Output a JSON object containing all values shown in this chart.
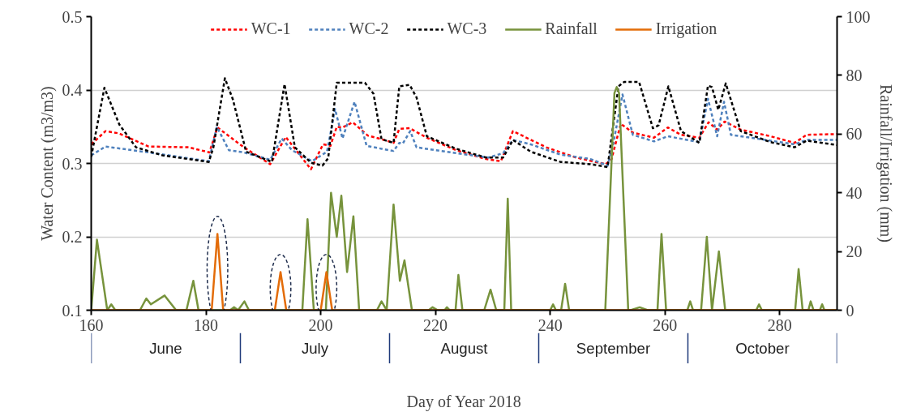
{
  "chart_data": {
    "type": "line",
    "xlabel": "Day of Year 2018",
    "ylabel": "Water Content (m3/m3)",
    "y2label": "Rainfall/Irrigation (mm)",
    "xlim": [
      160,
      290
    ],
    "xticks": [
      160,
      180,
      200,
      220,
      240,
      260,
      280
    ],
    "ylim": [
      0.1,
      0.5
    ],
    "yticks": [
      0.1,
      0.2,
      0.3,
      0.4,
      0.5
    ],
    "y2lim": [
      0,
      100
    ],
    "y2ticks": [
      0,
      20,
      40,
      60,
      80,
      100
    ],
    "grid": "y",
    "legend": "top",
    "marker": "none",
    "series": [
      {
        "name": "WC-1",
        "color": "#ff0000",
        "line_style": "dashed",
        "x": [
          160,
          162.5,
          164.8,
          170,
          177,
          180.6,
          182,
          186.6,
          191.2,
          193.9,
          196,
          198.3,
          200.4,
          201.7,
          202.8,
          203.8,
          205.6,
          208.2,
          210.6,
          212.7,
          213.7,
          215.5,
          218.5,
          223.6,
          228.8,
          231.4,
          233.5,
          239.3,
          244.5,
          249.7,
          250.7,
          252.3,
          254.4,
          258.1,
          260.5,
          262.8,
          266,
          267.6,
          269.1,
          270.4,
          273.2,
          278.4,
          282.6,
          284.7,
          290
        ],
        "values": [
          0.326,
          0.344,
          0.341,
          0.323,
          0.322,
          0.315,
          0.349,
          0.322,
          0.299,
          0.336,
          0.315,
          0.292,
          0.326,
          0.324,
          0.35,
          0.349,
          0.356,
          0.338,
          0.333,
          0.328,
          0.347,
          0.348,
          0.335,
          0.318,
          0.306,
          0.303,
          0.344,
          0.322,
          0.308,
          0.299,
          0.306,
          0.354,
          0.342,
          0.335,
          0.349,
          0.339,
          0.335,
          0.356,
          0.346,
          0.357,
          0.346,
          0.337,
          0.328,
          0.339,
          0.34
        ]
      },
      {
        "name": "WC-2",
        "color": "#4f81bd",
        "line_style": "dashed",
        "x": [
          160,
          162.5,
          170,
          180.5,
          181.9,
          184,
          186.6,
          191.2,
          193.2,
          195,
          198.5,
          201.1,
          202.5,
          203.8,
          205.9,
          208,
          210.6,
          212.7,
          213.7,
          214.3,
          215.6,
          216.7,
          220.9,
          229.2,
          231.8,
          233.5,
          236.6,
          241.8,
          247,
          250,
          251,
          252.6,
          254.4,
          258.1,
          260.5,
          266,
          267.5,
          269.1,
          270.3,
          271.5,
          278.4,
          282.6,
          284.7,
          290
        ],
        "values": [
          0.311,
          0.323,
          0.315,
          0.303,
          0.35,
          0.318,
          0.315,
          0.305,
          0.334,
          0.318,
          0.303,
          0.316,
          0.374,
          0.334,
          0.384,
          0.324,
          0.32,
          0.317,
          0.328,
          0.327,
          0.344,
          0.322,
          0.317,
          0.308,
          0.314,
          0.332,
          0.326,
          0.312,
          0.306,
          0.297,
          0.327,
          0.394,
          0.339,
          0.33,
          0.337,
          0.329,
          0.388,
          0.337,
          0.384,
          0.339,
          0.331,
          0.326,
          0.332,
          0.332
        ]
      },
      {
        "name": "WC-3",
        "color": "#000000",
        "line_style": "dashed",
        "x": [
          160,
          162.3,
          164.9,
          167.8,
          172.4,
          180.5,
          181.3,
          183.3,
          184.7,
          187,
          191.5,
          193.7,
          195.5,
          198.3,
          200.3,
          201.3,
          202.8,
          207.7,
          209.2,
          210.6,
          212.7,
          213.7,
          215.5,
          216.7,
          218.5,
          223.6,
          228.8,
          231.8,
          233.5,
          236.6,
          241.8,
          247,
          250,
          251.9,
          252.9,
          255.5,
          257.9,
          258.9,
          260.6,
          262.8,
          266,
          267.5,
          268.2,
          269.3,
          270.6,
          273.2,
          278.4,
          282.6,
          284.7,
          290
        ],
        "values": [
          0.309,
          0.403,
          0.353,
          0.322,
          0.311,
          0.302,
          0.322,
          0.416,
          0.387,
          0.316,
          0.302,
          0.408,
          0.322,
          0.301,
          0.297,
          0.307,
          0.41,
          0.41,
          0.395,
          0.333,
          0.328,
          0.405,
          0.407,
          0.39,
          0.337,
          0.32,
          0.308,
          0.308,
          0.332,
          0.316,
          0.302,
          0.299,
          0.295,
          0.405,
          0.411,
          0.411,
          0.348,
          0.352,
          0.405,
          0.344,
          0.328,
          0.406,
          0.404,
          0.373,
          0.409,
          0.344,
          0.329,
          0.322,
          0.331,
          0.325
        ]
      },
      {
        "name": "Rainfall",
        "color": "#77933c",
        "line_style": "solid",
        "axis": "y2",
        "x": [
          160,
          161,
          162.8,
          163.5,
          164.2,
          168.5,
          169.6,
          170.4,
          172.8,
          174.8,
          176.6,
          177.8,
          178.7,
          184.2,
          184.9,
          185.6,
          186.7,
          187.5,
          196.8,
          197.7,
          198.8,
          200.9,
          201.8,
          202.8,
          203.6,
          204.6,
          205.7,
          206.7,
          209.8,
          210.6,
          211.5,
          212.7,
          213.8,
          214.6,
          215.9,
          218.8,
          219.5,
          220.4,
          221.6,
          222,
          222.5,
          223.5,
          224,
          224.7,
          228.5,
          229.6,
          230.6,
          232,
          232.6,
          233.2,
          240,
          240.5,
          241,
          241.9,
          242.6,
          243.3,
          249.6,
          251.2,
          251.6,
          252,
          253.6,
          254,
          255.6,
          257,
          258.7,
          259.4,
          260.2,
          263.9,
          264.4,
          264.9,
          266.3,
          267.3,
          268.2,
          269.4,
          270.5,
          275.9,
          276.4,
          276.9,
          282.7,
          283.3,
          284,
          285,
          285.4,
          285.9,
          287,
          287.4,
          287.8,
          290
        ],
        "values": [
          0,
          24,
          0,
          2,
          0,
          0,
          4,
          2,
          5,
          0,
          0,
          10,
          0,
          0,
          1,
          0,
          3,
          0,
          0,
          31,
          0,
          0,
          40,
          25,
          39,
          13,
          32,
          0,
          0,
          3,
          0,
          36,
          10,
          17,
          0,
          0,
          1,
          0,
          0,
          1,
          0,
          0,
          12,
          0,
          0,
          7,
          0,
          0,
          38,
          0,
          0,
          2,
          0,
          0,
          9,
          0,
          0,
          74,
          76,
          74,
          0,
          0,
          1,
          0,
          0,
          26,
          0,
          0,
          3,
          0,
          0,
          25,
          0,
          20,
          0,
          0,
          2,
          0,
          0,
          14,
          0,
          0,
          3,
          0,
          0,
          2,
          0,
          0
        ]
      },
      {
        "name": "Irrigation",
        "color": "#e36c09",
        "line_style": "solid",
        "axis": "y2",
        "x": [
          160,
          181,
          182,
          183,
          192,
          193,
          194,
          200,
          201,
          202,
          290
        ],
        "values": [
          0,
          0,
          26,
          0,
          0,
          13,
          0,
          0,
          13,
          0,
          0
        ]
      }
    ],
    "annotations": [
      "June",
      "July",
      "August",
      "September",
      "October"
    ]
  }
}
